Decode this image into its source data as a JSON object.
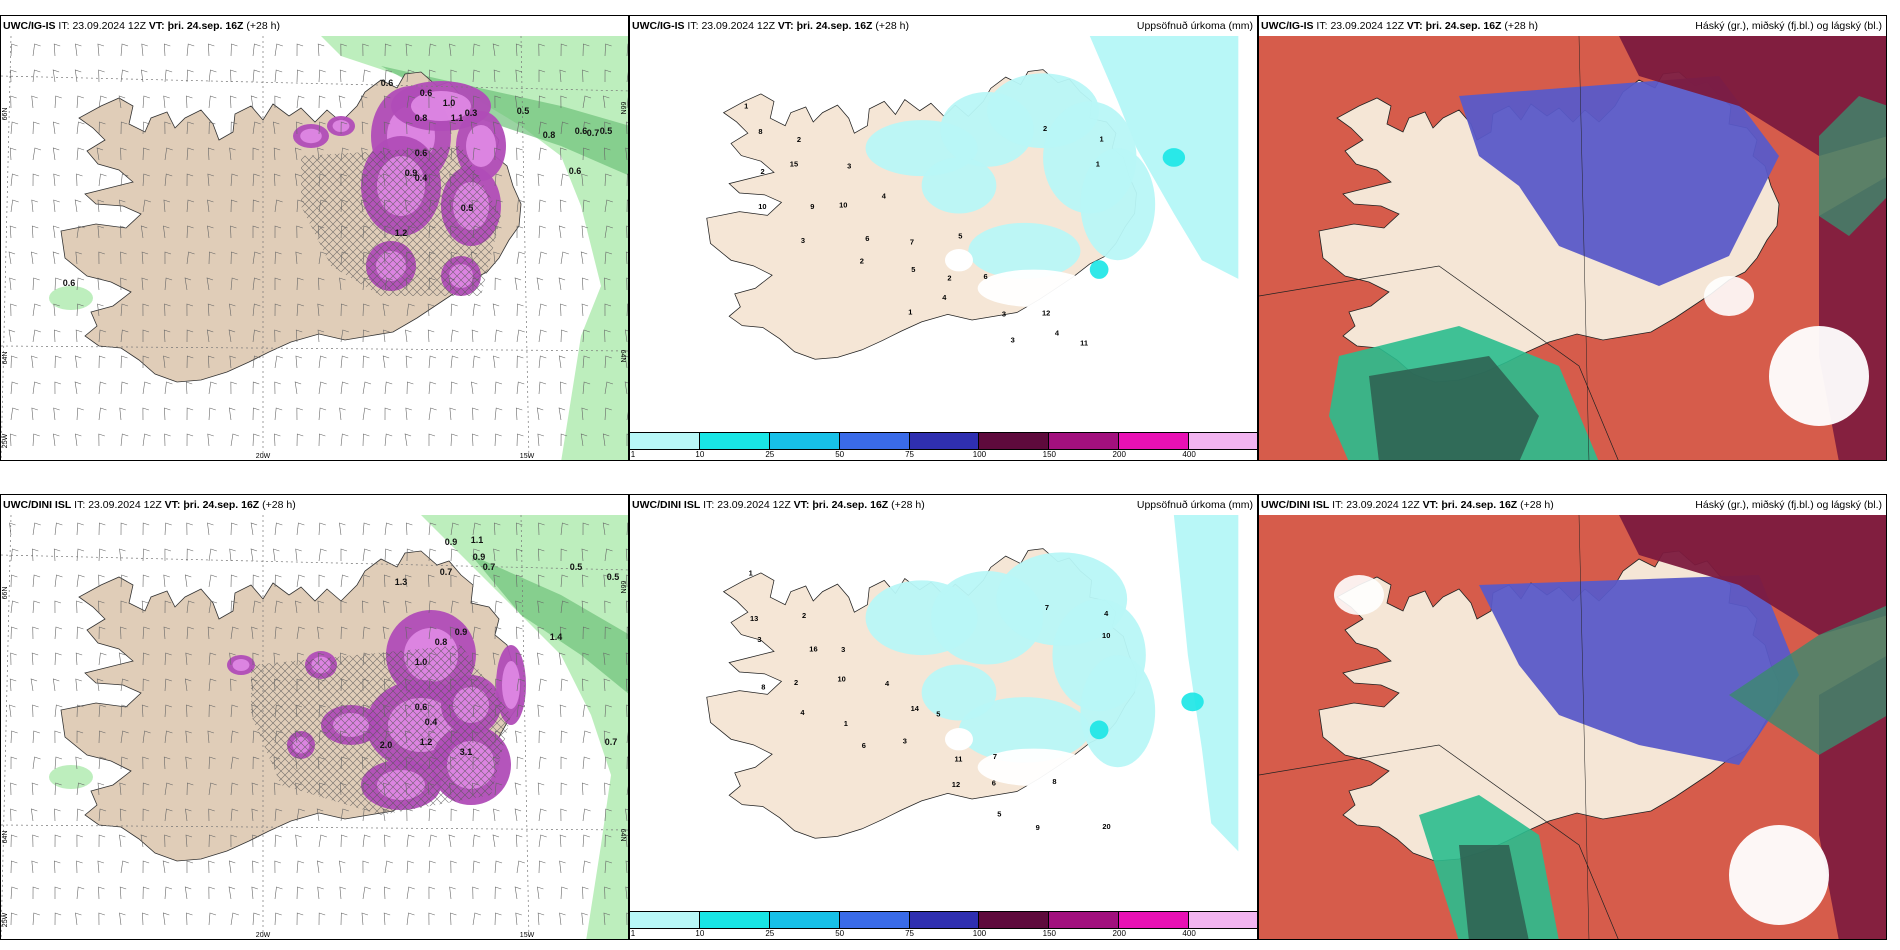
{
  "panels": {
    "r1c1": {
      "model": "UWC/IG-IS",
      "it_label": "IT:",
      "it_value": "23.09.2024 12Z",
      "vt_label": "VT:",
      "vt_value": "þri. 24.sep. 16Z",
      "lead": "(+28 h)",
      "right_title": ""
    },
    "r1c2": {
      "model": "UWC/IG-IS",
      "it_label": "IT:",
      "it_value": "23.09.2024 12Z",
      "vt_label": "VT:",
      "vt_value": "þri. 24.sep. 16Z",
      "lead": "(+28 h)",
      "right_title": "Uppsöfnuð úrkoma (mm)"
    },
    "r1c3": {
      "model": "UWC/IG-IS",
      "it_label": "IT:",
      "it_value": "23.09.2024 12Z",
      "vt_label": "VT:",
      "vt_value": "þri. 24.sep. 16Z",
      "lead": "(+28 h)",
      "right_title": "Háský (gr.), miðský (fj.bl.) og lágský (bl.)"
    },
    "r2c1": {
      "model": "UWC/DINI ISL",
      "it_label": "IT:",
      "it_value": "23.09.2024 12Z",
      "vt_label": "VT:",
      "vt_value": "þri. 24.sep. 16Z",
      "lead": "(+28 h)",
      "right_title": ""
    },
    "r2c2": {
      "model": "UWC/DINI ISL",
      "it_label": "IT:",
      "it_value": "23.09.2024 12Z",
      "vt_label": "VT:",
      "vt_value": "þri. 24.sep. 16Z",
      "lead": "(+28 h)",
      "right_title": "Uppsöfnuð úrkoma (mm)"
    },
    "r2c3": {
      "model": "UWC/DINI ISL",
      "it_label": "IT:",
      "it_value": "23.09.2024 12Z",
      "vt_label": "VT:",
      "vt_value": "þri. 24.sep. 16Z",
      "lead": "(+28 h)",
      "right_title": "Háský (gr.), miðský (fj.bl.) og lágský (bl.)"
    }
  },
  "grid_labels": {
    "lat_66": "66N",
    "lat_64": "64N",
    "lon_25w": "25W",
    "lon_20w": "20W",
    "lon_15w": "15W"
  },
  "colorbar": {
    "ticks": [
      "1",
      "10",
      "25",
      "50",
      "75",
      "100",
      "150",
      "200",
      "400"
    ],
    "colors": [
      "#b8f7f7",
      "#19e5e5",
      "#17c0e8",
      "#3a6be8",
      "#2f2fb0",
      "#5e0a3c",
      "#a2107e",
      "#e811b4",
      "#f2b4f0"
    ]
  },
  "colors": {
    "land": "#f5e6d6",
    "land_ig": "#e2d2c0",
    "ocean_cyan": "#b8f7f7",
    "green": "#b6ecb6",
    "green_dark": "#6fc27a",
    "purple": "#c250c9",
    "cloud_high": "#5a5ac8",
    "cloud_mid": "#d65c4b",
    "cloud_low": "#2bbd8e",
    "cloud_dark": "#7c1a3e"
  },
  "precip_labels_r1": [
    "1",
    "2",
    "3",
    "4",
    "5",
    "6",
    "12",
    "11",
    "8",
    "15",
    "10",
    "7",
    "2",
    "3",
    "4",
    "1",
    "2",
    "9",
    "6",
    "5",
    "4",
    "3",
    "2",
    "1",
    "10",
    "3",
    "2",
    "1"
  ],
  "precip_labels_r2": [
    "1",
    "2",
    "3",
    "4",
    "5",
    "7",
    "8",
    "20",
    "13",
    "16",
    "10",
    "14",
    "11",
    "6",
    "9",
    "4",
    "3",
    "2",
    "1",
    "3",
    "12",
    "5",
    "7",
    "10",
    "8",
    "4",
    "6"
  ],
  "vis_labels_r1": [
    "0.6",
    "0.6",
    "0.6",
    "0.5",
    "0.8",
    "0.7",
    "0.5",
    "0.6",
    "0.6",
    "1.0",
    "0.3",
    "0.8",
    "1.1",
    "0.9",
    "0.4",
    "0.5",
    "1.2",
    "0.6"
  ],
  "vis_labels_r2": [
    "0.9",
    "1.1",
    "0.9",
    "0.7",
    "0.5",
    "0.5",
    "0.7",
    "1.3",
    "0.8",
    "1.0",
    "0.6",
    "2.0",
    "1.2",
    "3.1",
    "0.9",
    "1.4",
    "0.4",
    "0.7"
  ]
}
